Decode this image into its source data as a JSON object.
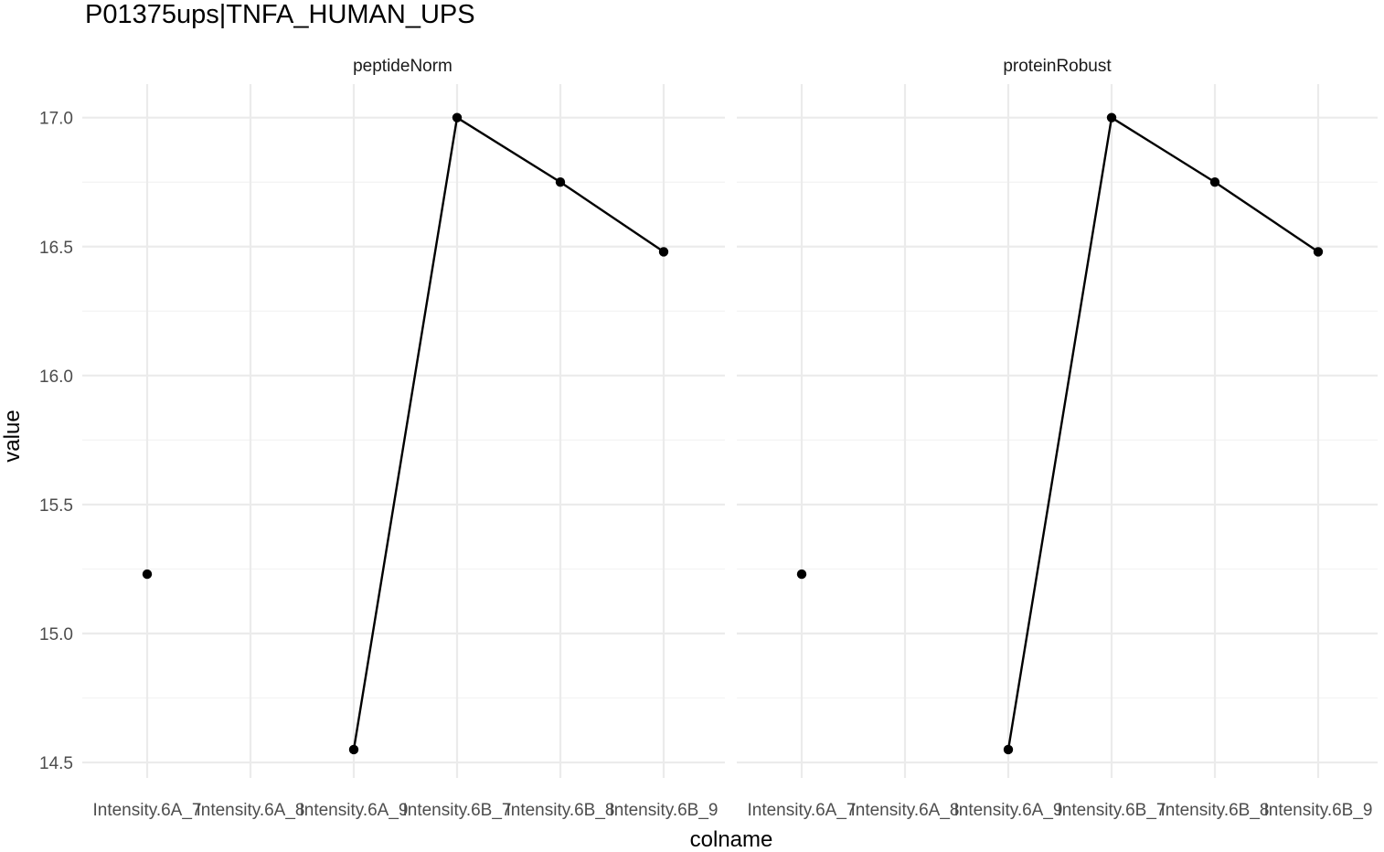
{
  "chart_data": {
    "type": "line",
    "title": "P01375ups|TNFA_HUMAN_UPS",
    "xlabel": "colname",
    "ylabel": "value",
    "categories": [
      "Intensity.6A_7",
      "Intensity.6A_8",
      "Intensity.6A_9",
      "Intensity.6B_7",
      "Intensity.6B_8",
      "Intensity.6B_9"
    ],
    "ylim": [
      14.44,
      17.13
    ],
    "yticks": [
      "14.5",
      "15.0",
      "15.5",
      "16.0",
      "16.5",
      "17.0"
    ],
    "grid": true,
    "panels": [
      {
        "name": "peptideNorm",
        "values": [
          15.23,
          null,
          14.55,
          17.0,
          16.75,
          16.48
        ]
      },
      {
        "name": "proteinRobust",
        "values": [
          15.23,
          null,
          14.55,
          17.0,
          16.75,
          16.48
        ]
      }
    ],
    "colors": {
      "series": "#000000",
      "grid_major": "#ebebeb",
      "grid_minor": "#f3f3f3",
      "text": "#4d4d4d",
      "title": "#000000"
    }
  }
}
